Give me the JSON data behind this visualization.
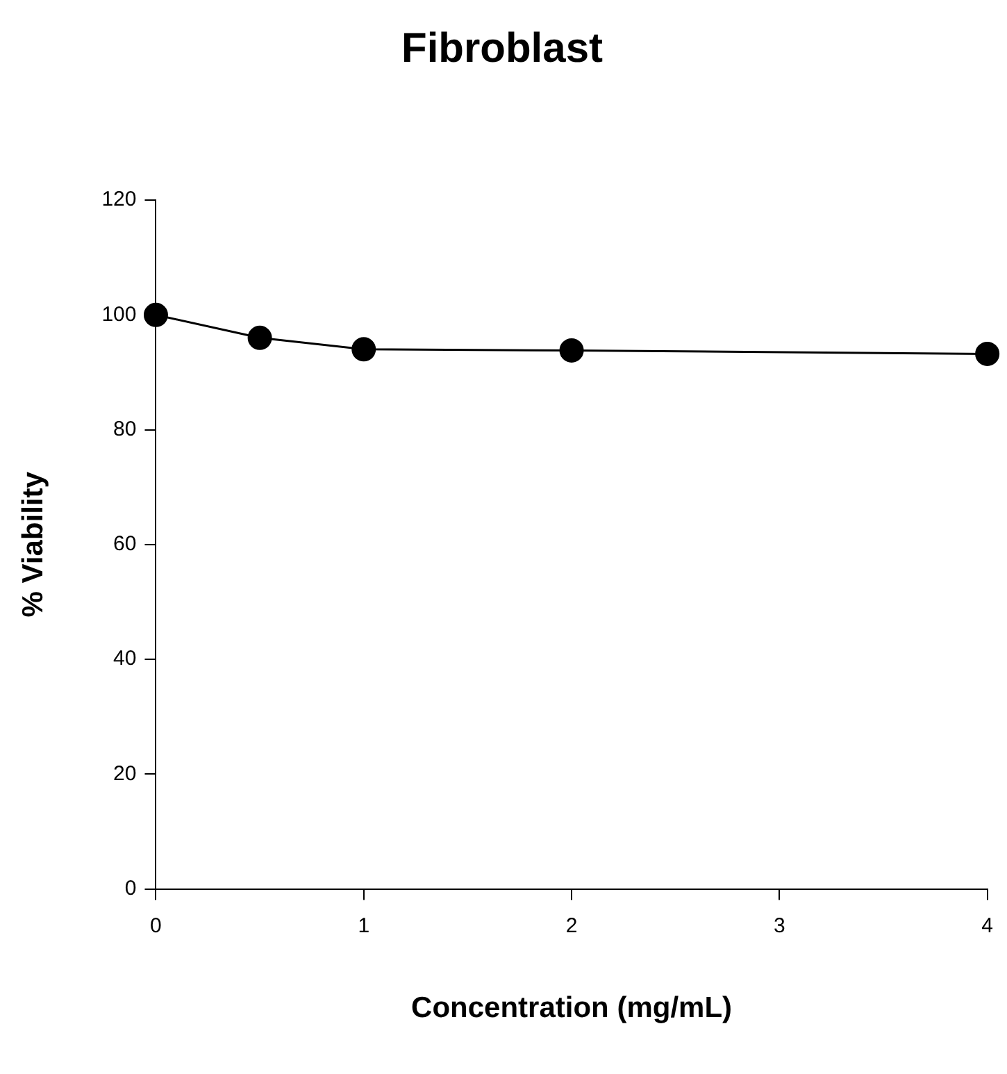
{
  "chart_data": {
    "type": "line",
    "title": "Fibroblast",
    "xlabel": "Concentration (mg/mL)",
    "ylabel": "% Viability",
    "x": [
      0,
      0.5,
      1,
      2,
      4
    ],
    "series": [
      {
        "color": "#000000",
        "values": [
          100,
          96,
          94,
          93.8,
          93.2
        ]
      }
    ],
    "xlim": [
      0,
      4
    ],
    "xticks": [
      0,
      1,
      2,
      3,
      4
    ],
    "ylim": [
      0,
      120
    ],
    "yticks": [
      0,
      20,
      40,
      60,
      80,
      100,
      120
    ],
    "grid": false,
    "legend": false,
    "marker": "circle",
    "line_style": "solid"
  }
}
